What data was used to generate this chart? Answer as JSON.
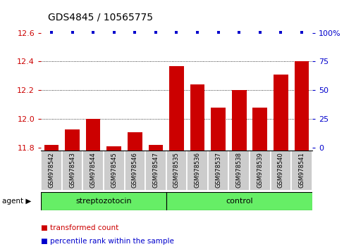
{
  "title": "GDS4845 / 10565775",
  "samples": [
    "GSM978542",
    "GSM978543",
    "GSM978544",
    "GSM978545",
    "GSM978546",
    "GSM978547",
    "GSM978535",
    "GSM978536",
    "GSM978537",
    "GSM978538",
    "GSM978539",
    "GSM978540",
    "GSM978541"
  ],
  "red_values": [
    11.82,
    11.93,
    12.0,
    11.81,
    11.91,
    11.82,
    12.37,
    12.24,
    12.08,
    12.2,
    12.08,
    12.31,
    12.4
  ],
  "ylim_left": [
    11.78,
    12.62
  ],
  "yticks_left": [
    11.8,
    12.0,
    12.2,
    12.4,
    12.6
  ],
  "yticks_right": [
    0,
    25,
    50,
    75,
    100
  ],
  "group1": "streptozotocin",
  "group1_count": 6,
  "group2": "control",
  "group2_count": 7,
  "agent_label": "agent",
  "legend1": "transformed count",
  "legend2": "percentile rank within the sample",
  "bar_color": "#cc0000",
  "dot_color": "#0000cc",
  "bg_color": "#ffffff",
  "tick_label_bg": "#cccccc",
  "group_bg": "#66ee66",
  "bar_width": 0.7,
  "grid_lines": [
    12.0,
    12.2,
    12.4
  ],
  "title_fontsize": 10,
  "tick_fontsize": 8,
  "group_fontsize": 8,
  "legend_fontsize": 7.5,
  "label_fontsize": 6
}
